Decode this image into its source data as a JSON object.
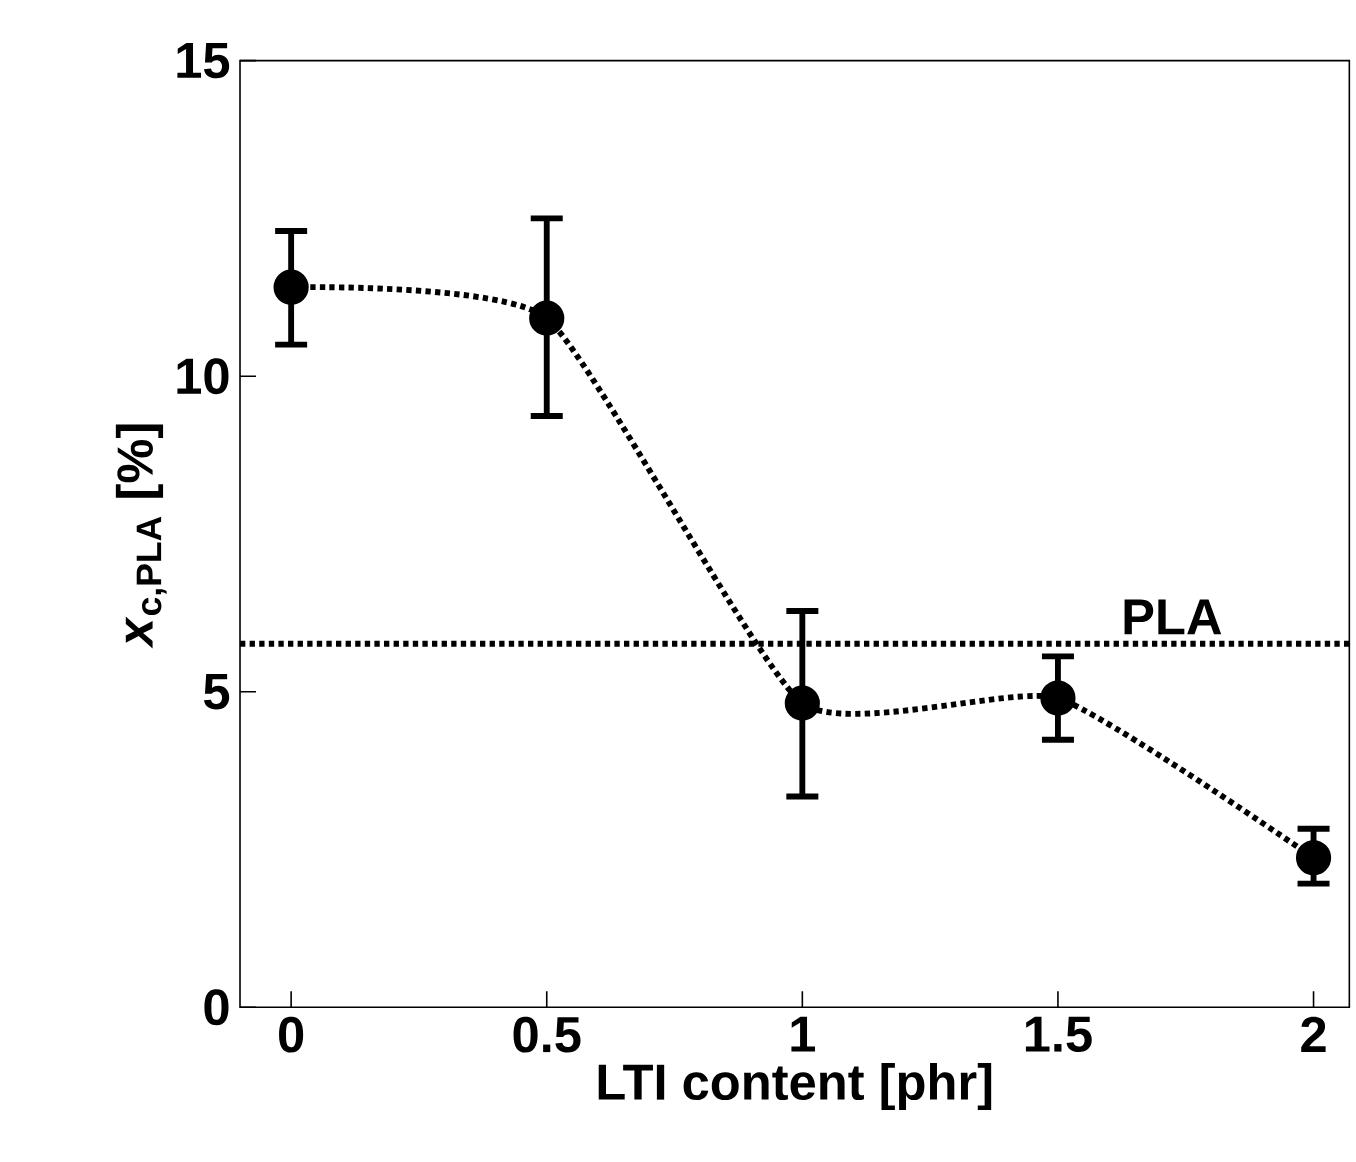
{
  "chart_data": {
    "type": "line",
    "xlabel": "LTI content [phr]",
    "ylabel": "*x*$_{c,PLA}$ [%]",
    "x": [
      0,
      0.5,
      1,
      1.5,
      2
    ],
    "series": [
      {
        "color": "#000000",
        "values": [
          11.41,
          10.92,
          4.82,
          4.9,
          2.37
        ],
        "errors": [
          [
            10.5,
            12.3
          ],
          [
            9.37,
            12.5
          ],
          [
            3.34,
            6.28
          ],
          [
            4.24,
            5.56
          ],
          [
            1.96,
            2.83
          ]
        ]
      }
    ],
    "marker": "circle",
    "line_style": "dotted",
    "xlim": [
      -0.1,
      2.07
    ],
    "ylim": [
      0,
      15
    ],
    "xticks": [
      0,
      0.5,
      1,
      1.5,
      2
    ],
    "yticks": [
      0,
      5,
      10,
      15
    ],
    "ref_lines": [
      {
        "axis": "y",
        "value": 5.76,
        "label": "PLA",
        "line_style": "dotted"
      }
    ],
    "grid": false
  }
}
